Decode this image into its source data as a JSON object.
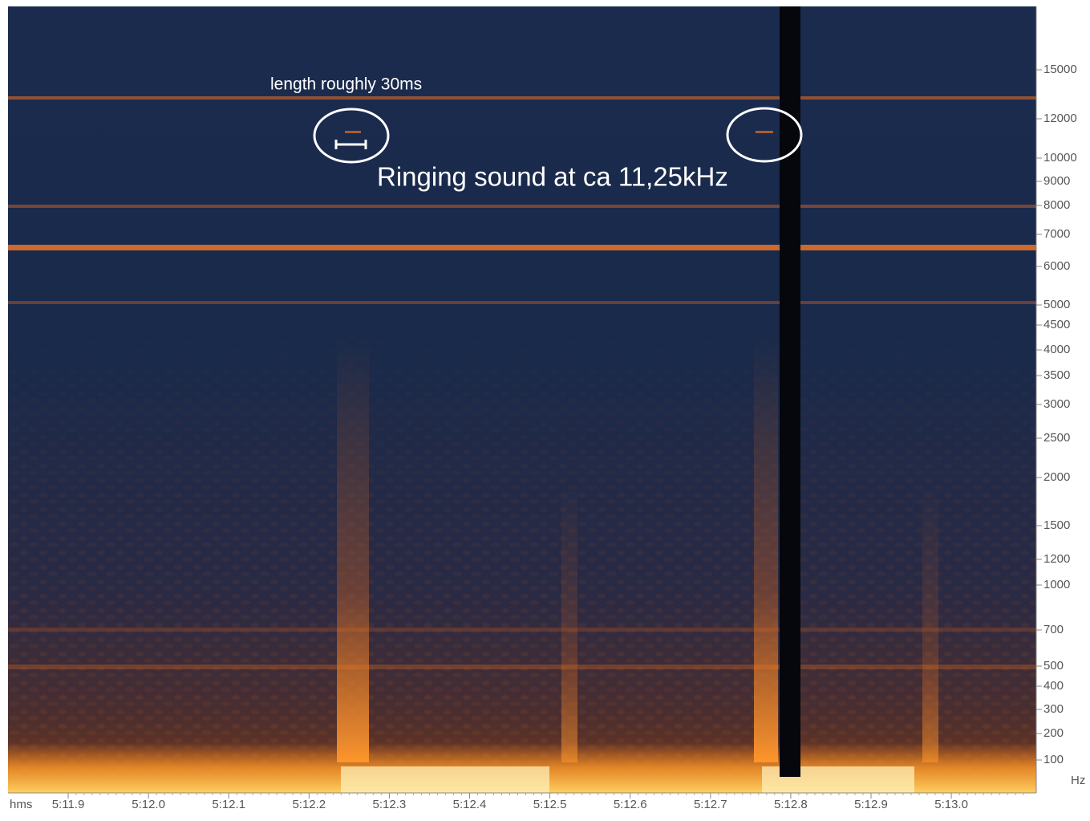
{
  "y_axis": {
    "unit": "Hz",
    "ticks": [
      "15000",
      "12000",
      "10000",
      "9000",
      "8000",
      "7000",
      "6000",
      "5000",
      "4500",
      "4000",
      "3500",
      "3000",
      "2500",
      "2000",
      "1500",
      "1200",
      "1000",
      "700",
      "500",
      "400",
      "300",
      "200",
      "100"
    ]
  },
  "x_axis": {
    "unit": "hms",
    "ticks": [
      "5:11.9",
      "5:12.0",
      "5:12.1",
      "5:12.2",
      "5:12.3",
      "5:12.4",
      "5:12.5",
      "5:12.6",
      "5:12.7",
      "5:12.8",
      "5:12.9",
      "5:13.0"
    ]
  },
  "annotations": {
    "length": "length roughly 30ms",
    "ringing": "Ringing sound at ca 11,25kHz"
  }
}
